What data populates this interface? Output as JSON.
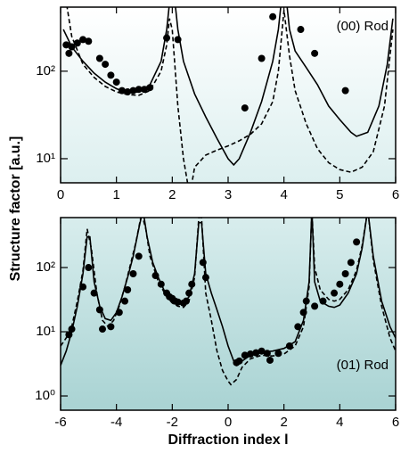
{
  "chart_data": [
    {
      "type": "line",
      "log_y": true,
      "annotation": "(00) Rod",
      "ylabel": "Structure factor [a.u.]",
      "xlim": [
        0,
        6
      ],
      "xticks": [
        0,
        1,
        2,
        3,
        4,
        5,
        6
      ],
      "ylim": [
        5.3,
        540
      ],
      "yticks": [
        {
          "value": 10,
          "label": "10¹"
        },
        {
          "value": 100,
          "label": "10²"
        }
      ],
      "series": [
        {
          "style": "solid",
          "color": "#000000",
          "x": [
            0.05,
            0.2,
            0.4,
            0.6,
            0.8,
            1.0,
            1.2,
            1.4,
            1.6,
            1.8,
            1.9,
            1.97,
            2.03,
            2.1,
            2.2,
            2.4,
            2.6,
            2.8,
            3.0,
            3.1,
            3.2,
            3.4,
            3.6,
            3.8,
            3.9,
            3.97,
            4.03,
            4.1,
            4.2,
            4.4,
            4.6,
            4.8,
            5.0,
            5.2,
            5.3,
            5.5,
            5.7,
            5.85,
            5.95
          ],
          "values": [
            300,
            190,
            130,
            95,
            75,
            63,
            57,
            58,
            70,
            130,
            300,
            800,
            800,
            300,
            130,
            55,
            30,
            17,
            10,
            8.5,
            10,
            20,
            45,
            130,
            300,
            800,
            800,
            300,
            170,
            110,
            70,
            40,
            28,
            20,
            18,
            20,
            40,
            120,
            400
          ]
        },
        {
          "style": "dashed",
          "color": "#000000",
          "x": [
            0.05,
            0.2,
            0.4,
            0.6,
            0.8,
            1.0,
            1.2,
            1.4,
            1.6,
            1.8,
            1.9,
            1.95,
            2.0,
            2.1,
            2.2,
            2.28,
            2.35,
            2.4,
            2.6,
            2.8,
            3.0,
            3.2,
            3.4,
            3.6,
            3.8,
            3.9,
            4.0,
            4.1,
            4.2,
            4.4,
            4.6,
            4.8,
            5.0,
            5.2,
            5.4,
            5.6,
            5.8,
            5.95
          ],
          "values": [
            1000,
            250,
            120,
            85,
            67,
            58,
            54,
            53,
            60,
            100,
            200,
            400,
            300,
            40,
            10,
            5,
            5.2,
            8,
            11,
            12.5,
            14,
            16,
            19,
            25,
            45,
            100,
            500,
            150,
            60,
            25,
            13,
            9,
            7.5,
            7,
            8,
            12,
            40,
            300
          ]
        },
        {
          "style": "markers",
          "color": "#000000",
          "x": [
            0.1,
            0.15,
            0.2,
            0.3,
            0.4,
            0.5,
            0.7,
            0.8,
            0.9,
            1.0,
            1.1,
            1.2,
            1.3,
            1.4,
            1.5,
            1.6,
            1.9,
            2.1,
            3.3,
            3.6,
            3.8,
            4.3,
            4.55,
            5.1
          ],
          "values": [
            200,
            160,
            190,
            210,
            230,
            220,
            140,
            120,
            90,
            75,
            60,
            58,
            60,
            62,
            62,
            65,
            240,
            230,
            38,
            140,
            420,
            300,
            160,
            60
          ]
        }
      ]
    },
    {
      "type": "line",
      "log_y": true,
      "annotation": "(01) Rod",
      "xlabel": "Diffraction index l",
      "xlim": [
        -6,
        6
      ],
      "xticks": [
        -6,
        -4,
        -2,
        0,
        2,
        4,
        6
      ],
      "ylim": [
        0.6,
        600
      ],
      "yticks": [
        {
          "value": 1,
          "label": "10⁰"
        },
        {
          "value": 10,
          "label": "10¹"
        },
        {
          "value": 100,
          "label": "10²"
        }
      ],
      "series": [
        {
          "style": "solid",
          "color": "#000000",
          "x": [
            -6,
            -5.8,
            -5.6,
            -5.4,
            -5.2,
            -5.05,
            -4.95,
            -4.8,
            -4.6,
            -4.4,
            -4.2,
            -4.0,
            -3.8,
            -3.6,
            -3.4,
            -3.2,
            -3.05,
            -2.9,
            -2.7,
            -2.5,
            -2.3,
            -2.0,
            -1.8,
            -1.6,
            -1.4,
            -1.2,
            -1.05,
            -0.95,
            -0.8,
            -0.6,
            -0.4,
            -0.2,
            0,
            0.2,
            0.3,
            0.5,
            0.8,
            1.2,
            1.6,
            2.0,
            2.4,
            2.7,
            2.9,
            3.0,
            3.1,
            3.3,
            3.6,
            3.8,
            4.0,
            4.3,
            4.6,
            4.8,
            5.0,
            5.2,
            5.5,
            5.8,
            6.0
          ],
          "values": [
            3,
            5,
            10,
            25,
            80,
            300,
            300,
            60,
            25,
            16,
            15,
            20,
            35,
            70,
            150,
            400,
            800,
            300,
            120,
            70,
            45,
            32,
            28,
            28,
            35,
            80,
            500,
            500,
            80,
            40,
            22,
            12,
            6,
            3.5,
            3,
            3.5,
            4.3,
            4.8,
            5,
            5.5,
            7,
            15,
            60,
            800,
            60,
            30,
            25,
            24,
            26,
            40,
            80,
            200,
            800,
            150,
            30,
            12,
            8
          ]
        },
        {
          "style": "dashed",
          "color": "#000000",
          "x": [
            -6,
            -5.8,
            -5.6,
            -5.4,
            -5.2,
            -5.05,
            -4.9,
            -4.7,
            -4.5,
            -4.3,
            -4.1,
            -3.9,
            -3.7,
            -3.5,
            -3.3,
            -3.1,
            -2.95,
            -2.8,
            -2.5,
            -2.2,
            -2.0,
            -1.8,
            -1.6,
            -1.4,
            -1.2,
            -1.05,
            -0.95,
            -0.8,
            -0.6,
            -0.4,
            -0.2,
            0,
            0.1,
            0.3,
            0.5,
            0.8,
            1.2,
            1.6,
            2.0,
            2.4,
            2.7,
            2.9,
            3.0,
            3.1,
            3.3,
            3.6,
            3.8,
            4.0,
            4.3,
            4.6,
            4.8,
            5.0,
            5.2,
            5.5,
            5.8,
            6.0
          ],
          "values": [
            6,
            8,
            12,
            30,
            90,
            400,
            200,
            40,
            15,
            12,
            15,
            25,
            50,
            110,
            250,
            700,
            400,
            150,
            60,
            35,
            28,
            25,
            24,
            30,
            70,
            600,
            600,
            40,
            15,
            5,
            2.5,
            1.7,
            1.5,
            1.8,
            2.8,
            3.8,
            4.3,
            4.2,
            4.5,
            6,
            12,
            50,
            800,
            100,
            45,
            32,
            30,
            32,
            45,
            90,
            220,
            800,
            130,
            25,
            8,
            5
          ]
        },
        {
          "style": "markers",
          "color": "#000000",
          "x": [
            -5.7,
            -5.6,
            -5.2,
            -5.0,
            -4.8,
            -4.6,
            -4.5,
            -4.2,
            -3.9,
            -3.7,
            -3.6,
            -3.4,
            -3.2,
            -2.6,
            -2.4,
            -2.2,
            -2.1,
            -2.0,
            -1.9,
            -1.8,
            -1.6,
            -1.5,
            -1.4,
            -1.3,
            -0.9,
            -0.8,
            0.3,
            0.4,
            0.6,
            0.8,
            1.0,
            1.2,
            1.4,
            1.5,
            1.8,
            2.2,
            2.5,
            2.7,
            2.8,
            3.1,
            3.4,
            3.8,
            4.0,
            4.2,
            4.4,
            4.6
          ],
          "values": [
            9,
            11,
            50,
            100,
            40,
            22,
            11,
            12,
            20,
            30,
            45,
            80,
            150,
            75,
            55,
            40,
            35,
            33,
            30,
            29,
            28,
            30,
            40,
            55,
            120,
            70,
            3.3,
            3.5,
            4.3,
            4.5,
            4.7,
            5,
            4.6,
            3.6,
            4.6,
            6,
            12,
            20,
            30,
            25,
            30,
            40,
            55,
            80,
            120,
            250
          ]
        }
      ]
    }
  ]
}
